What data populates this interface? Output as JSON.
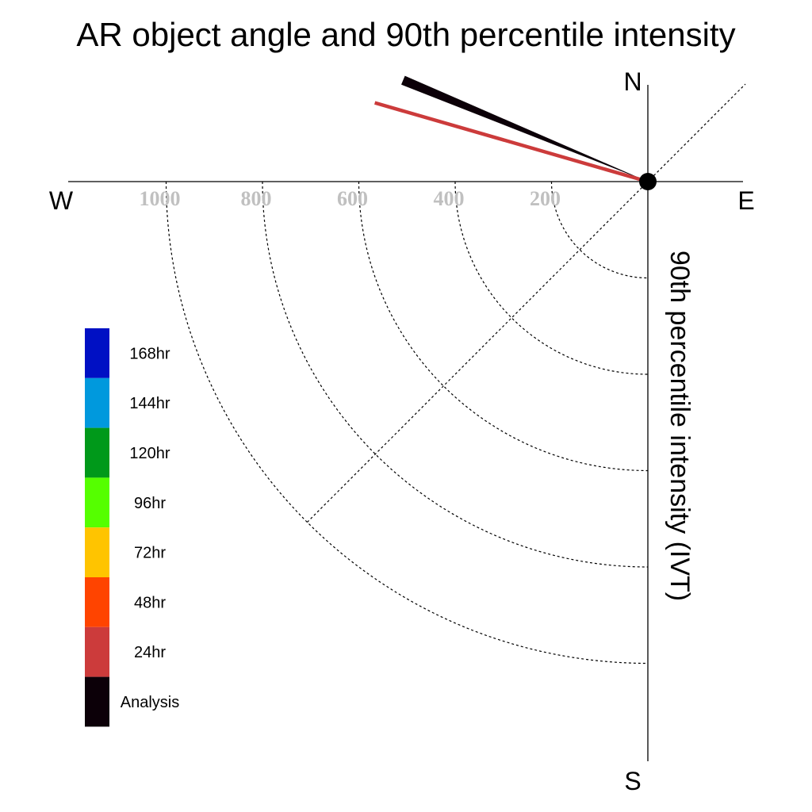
{
  "title": "AR object angle and 90th percentile intensity",
  "compass": {
    "north": "N",
    "south": "S",
    "east": "E",
    "west": "W"
  },
  "axis_title": "90th percentile intensity (IVT)",
  "colors": {
    "ring": "#000000",
    "ring_label": "#c0c0c0",
    "axis": "#000000"
  },
  "chart_data": {
    "type": "polar-vector",
    "title": "AR object angle and 90th percentile intensity",
    "radial_axis_label": "90th percentile intensity (IVT)",
    "radial_ticks": [
      200,
      400,
      600,
      800,
      1000
    ],
    "radial_max": 1200,
    "grid": true,
    "legend_placement": "left",
    "legend": [
      {
        "label": "168hr",
        "color": "#0010c4"
      },
      {
        "label": "144hr",
        "color": "#0099dd"
      },
      {
        "label": "120hr",
        "color": "#00991a"
      },
      {
        "label": "96hr",
        "color": "#55ff00"
      },
      {
        "label": "72hr",
        "color": "#ffc400"
      },
      {
        "label": "48hr",
        "color": "#ff4400"
      },
      {
        "label": "24hr",
        "color": "#cc3b3b"
      },
      {
        "label": "Analysis",
        "color": "#0c0008"
      }
    ],
    "series": [
      {
        "name": "Analysis",
        "angle_deg": 292.5,
        "intensity": 550,
        "color": "#0c0008"
      },
      {
        "name": "24hr",
        "angle_deg": 286.1,
        "intensity": 590,
        "color": "#cc3b3b"
      }
    ]
  }
}
